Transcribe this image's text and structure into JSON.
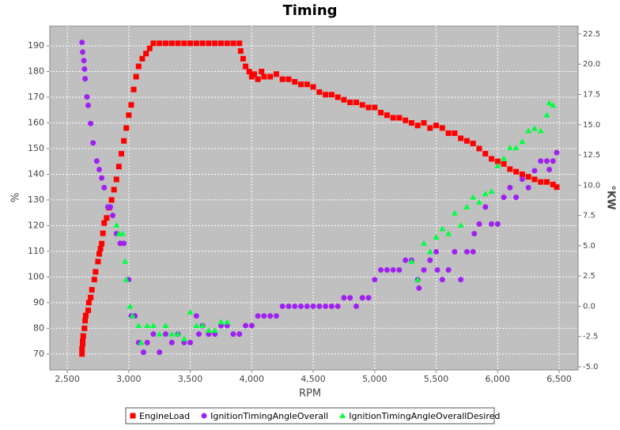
{
  "chart_data": {
    "type": "scatter",
    "title": "Timing",
    "x_label": "RPM",
    "y_label": "%",
    "y2_label": "°KW",
    "xlim": [
      2358,
      6654
    ],
    "ylim": [
      63.8,
      197.7
    ],
    "y2lim": [
      -5.26,
      23.15
    ],
    "xticks": [
      {
        "value": 2500,
        "label": "2,500"
      },
      {
        "value": 3000,
        "label": "3,000"
      },
      {
        "value": 3500,
        "label": "3,500"
      },
      {
        "value": 4000,
        "label": "4,000"
      },
      {
        "value": 4500,
        "label": "4,500"
      },
      {
        "value": 5000,
        "label": "5,000"
      },
      {
        "value": 5500,
        "label": "5,500"
      },
      {
        "value": 6000,
        "label": "6,000"
      },
      {
        "value": 6500,
        "label": "6,500"
      }
    ],
    "yticks": [
      70,
      80,
      90,
      100,
      110,
      120,
      130,
      140,
      150,
      160,
      170,
      180,
      190
    ],
    "y2ticks": [
      {
        "value": -5,
        "label": "-5.0"
      },
      -2.5,
      {
        "value": 0,
        "label": "0.0"
      },
      2.5,
      {
        "value": 5,
        "label": "5.0"
      },
      7.5,
      {
        "value": 10,
        "label": "10.0"
      },
      12.5,
      {
        "value": 15,
        "label": "15.0"
      },
      17.5,
      {
        "value": 20,
        "label": "20.0"
      },
      22.5
    ],
    "grid": true,
    "legend": "bottom",
    "series": [
      {
        "name": "EngineLoad",
        "color": "#ff0000",
        "marker": "square",
        "axis": "y",
        "x": [
          2620,
          2620,
          2625,
          2625,
          2630,
          2640,
          2645,
          2650,
          2670,
          2675,
          2690,
          2700,
          2720,
          2730,
          2750,
          2760,
          2770,
          2780,
          2790,
          2800,
          2820,
          2840,
          2860,
          2880,
          2900,
          2920,
          2940,
          2960,
          2980,
          3000,
          3020,
          3040,
          3060,
          3080,
          3110,
          3140,
          3170,
          3200,
          3250,
          3300,
          3350,
          3400,
          3450,
          3500,
          3550,
          3600,
          3650,
          3700,
          3750,
          3800,
          3850,
          3900,
          3910,
          3930,
          3950,
          3980,
          4000,
          4020,
          4050,
          4080,
          4100,
          4150,
          4200,
          4250,
          4300,
          4350,
          4400,
          4450,
          4500,
          4550,
          4600,
          4650,
          4700,
          4750,
          4800,
          4850,
          4900,
          4950,
          5000,
          5050,
          5100,
          5150,
          5200,
          5250,
          5300,
          5350,
          5400,
          5450,
          5500,
          5550,
          5600,
          5650,
          5700,
          5750,
          5800,
          5850,
          5900,
          5950,
          6000,
          6050,
          6100,
          6150,
          6200,
          6250,
          6300,
          6350,
          6400,
          6450,
          6480
        ],
        "values": [
          70,
          72,
          74,
          75,
          77,
          80,
          83,
          85,
          87,
          90,
          92,
          95,
          99,
          102,
          106,
          109,
          111,
          113,
          117,
          121,
          123,
          127,
          130,
          134,
          138,
          143,
          148,
          153,
          158,
          163,
          167,
          173,
          178,
          182,
          185,
          187,
          189,
          191,
          191,
          191,
          191,
          191,
          191,
          191,
          191,
          191,
          191,
          191,
          191,
          191,
          191,
          191,
          188,
          185,
          182,
          180,
          178,
          179,
          177,
          180,
          178,
          178,
          179,
          177,
          177,
          176,
          175,
          175,
          174,
          172,
          171,
          171,
          170,
          169,
          168,
          168,
          167,
          166,
          166,
          164,
          163,
          162,
          162,
          161,
          160,
          159,
          160,
          158,
          159,
          158,
          156,
          156,
          154,
          153,
          152,
          150,
          148,
          146,
          145,
          144,
          142,
          141,
          140,
          139,
          138,
          137,
          137,
          136,
          135
        ]
      },
      {
        "name": "IgnitionTimingAngleOverall",
        "color": "#a020f0",
        "marker": "circle",
        "axis": "y2",
        "x": [
          2620,
          2625,
          2635,
          2640,
          2645,
          2660,
          2670,
          2690,
          2710,
          2740,
          2760,
          2780,
          2800,
          2830,
          2850,
          2870,
          2900,
          2930,
          2960,
          3000,
          3020,
          3050,
          3080,
          3120,
          3150,
          3200,
          3250,
          3300,
          3350,
          3400,
          3450,
          3500,
          3550,
          3570,
          3600,
          3650,
          3700,
          3750,
          3800,
          3850,
          3900,
          3950,
          4000,
          4050,
          4100,
          4150,
          4200,
          4250,
          4300,
          4350,
          4400,
          4450,
          4500,
          4550,
          4600,
          4650,
          4700,
          4750,
          4800,
          4850,
          4900,
          4950,
          5000,
          5050,
          5100,
          5150,
          5200,
          5250,
          5300,
          5350,
          5360,
          5400,
          5450,
          5500,
          5510,
          5550,
          5600,
          5650,
          5700,
          5750,
          5800,
          5810,
          5850,
          5900,
          5950,
          6000,
          6050,
          6100,
          6150,
          6200,
          6250,
          6300,
          6350,
          6400,
          6420,
          6450,
          6480
        ],
        "values": [
          21.8,
          21,
          20.3,
          19.6,
          18.8,
          17.3,
          16.6,
          15.1,
          13.5,
          12,
          11.3,
          10.6,
          9.8,
          8.2,
          8.2,
          7.5,
          6,
          5.2,
          5.2,
          2.2,
          -0.8,
          -0.8,
          -3,
          -3.8,
          -3,
          -2.3,
          -3.8,
          -2.3,
          -3,
          -2.3,
          -3,
          -3,
          -0.8,
          -2.3,
          -1.6,
          -2.3,
          -2.3,
          -1.6,
          -1.6,
          -2.3,
          -2.3,
          -1.6,
          -1.6,
          -0.8,
          -0.8,
          -0.8,
          -0.8,
          0,
          0,
          0,
          0,
          0,
          0,
          0,
          0,
          0,
          0,
          0.7,
          0.7,
          0,
          0.7,
          0.7,
          2.2,
          3,
          3,
          3,
          3,
          3.8,
          3.8,
          2.2,
          1.5,
          3,
          3.8,
          4.5,
          3,
          2.2,
          3,
          4.5,
          2.2,
          4.5,
          4.5,
          6,
          6.8,
          8.2,
          6.8,
          6.8,
          9,
          9.8,
          9,
          10.5,
          9.8,
          11.2,
          12,
          12,
          11.3,
          12,
          12.7
        ]
      },
      {
        "name": "IgnitionTimingAngleOverallDesired",
        "color": "#00ff40",
        "marker": "triangle",
        "axis": "y2",
        "x": [
          2900,
          2920,
          2950,
          2970,
          2980,
          3010,
          3030,
          3080,
          3100,
          3150,
          3200,
          3250,
          3300,
          3350,
          3400,
          3450,
          3500,
          3550,
          3600,
          3650,
          3700,
          3750,
          3800,
          5300,
          5350,
          5400,
          5450,
          5500,
          5550,
          5600,
          5650,
          5700,
          5750,
          5800,
          5850,
          5900,
          5950,
          6000,
          6050,
          6100,
          6150,
          6200,
          6250,
          6300,
          6350,
          6400,
          6420,
          6450
        ],
        "values": [
          6.7,
          6,
          6,
          3.7,
          2.2,
          0,
          -0.8,
          -1.6,
          -3,
          -1.6,
          -1.6,
          -2.3,
          -1.6,
          -2.3,
          -2.3,
          -2.7,
          -0.5,
          -1.6,
          -1.6,
          -2,
          -2,
          -1.3,
          -1.3,
          3.7,
          2.2,
          5.2,
          4.5,
          5.7,
          6.4,
          6,
          7.7,
          6.7,
          8.2,
          9,
          8.6,
          9.3,
          9.5,
          11.6,
          12.2,
          13.1,
          13.1,
          13.6,
          14.5,
          14.7,
          14.5,
          15.8,
          16.8,
          16.6
        ]
      }
    ]
  }
}
